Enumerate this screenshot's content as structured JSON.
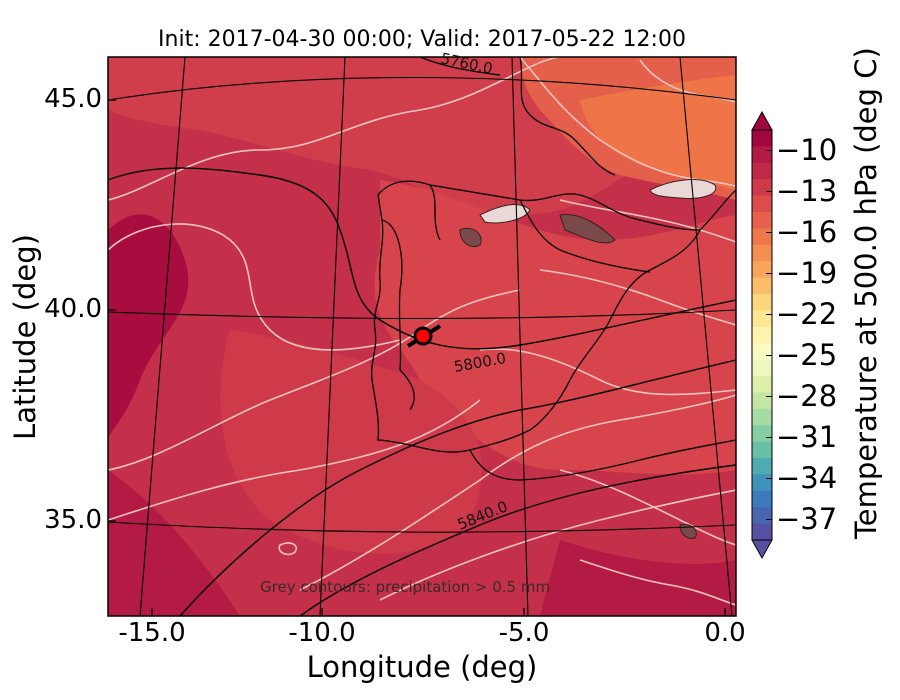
{
  "title": "Init: 2017-04-30 00:00; Valid: 2017-05-22 12:00",
  "xaxis": {
    "label": "Longitude (deg)",
    "ticks": [
      "-15.0",
      "-10.0",
      "-5.0",
      "0.0"
    ],
    "tick_values": [
      -15,
      -10,
      -5,
      0
    ],
    "range": [
      -15.9,
      0.1
    ]
  },
  "yaxis": {
    "label": "Latitude (deg)",
    "ticks": [
      "45.0",
      "40.0",
      "35.0"
    ],
    "tick_values": [
      45,
      40,
      35
    ],
    "range": [
      32.7,
      46.1
    ]
  },
  "colorbar": {
    "label": "Temperature at 500.0 hPa (deg C)",
    "ticks": [
      "−10",
      "−13",
      "−16",
      "−19",
      "−22",
      "−25",
      "−28",
      "−31",
      "−34",
      "−37"
    ],
    "tick_values": [
      -10,
      -13,
      -16,
      -19,
      -22,
      -25,
      -28,
      -31,
      -34,
      -37
    ],
    "range": [
      -38.5,
      -8.5
    ],
    "colors_top_to_bottom": [
      "#a1063f",
      "#b01a45",
      "#c02848",
      "#cf3a4a",
      "#db4d4b",
      "#e5614c",
      "#ee784c",
      "#f48f52",
      "#f8a55b",
      "#fbbd68",
      "#fdd57c",
      "#fee792",
      "#fff3ad",
      "#fafbc3",
      "#eef8bd",
      "#dcf1a7",
      "#c3e7a2",
      "#a6dba4",
      "#86cfa5",
      "#68c1a7",
      "#4fabb0",
      "#3f93bb",
      "#3c7bbb",
      "#4865ad",
      "#5550a1"
    ]
  },
  "contour_labels": [
    "5760.0",
    "5800.0",
    "5840.0"
  ],
  "annotation": "Grey contours: precipitation > 0.5 mm",
  "colors": {
    "background_fill": "#c9364b",
    "warm_fill": "#ee6f49",
    "coast_lines": "#000000",
    "temp_contours": "#f6c3c0",
    "marker": "#ff0000"
  }
}
